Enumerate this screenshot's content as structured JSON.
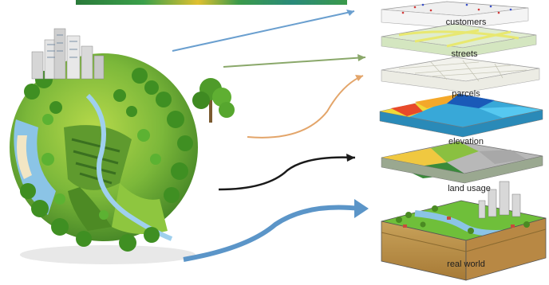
{
  "layers": [
    {
      "id": "customers",
      "label": "customers"
    },
    {
      "id": "streets",
      "label": "streets"
    },
    {
      "id": "parcels",
      "label": "parcels"
    },
    {
      "id": "elevation",
      "label": "elevation"
    },
    {
      "id": "land-usage",
      "label": "land usage"
    },
    {
      "id": "real-world",
      "label": "real world"
    }
  ],
  "colors": {
    "arrow_blue": "#6a9fcf",
    "arrow_green": "#8aa86a",
    "arrow_orange": "#e3a56a",
    "arrow_black": "#1a1a1a",
    "arrow_thick_blue": "#5b95c8",
    "grass": "#6fbf3a",
    "soil": "#c89a4a",
    "water": "#8bc4e6"
  }
}
